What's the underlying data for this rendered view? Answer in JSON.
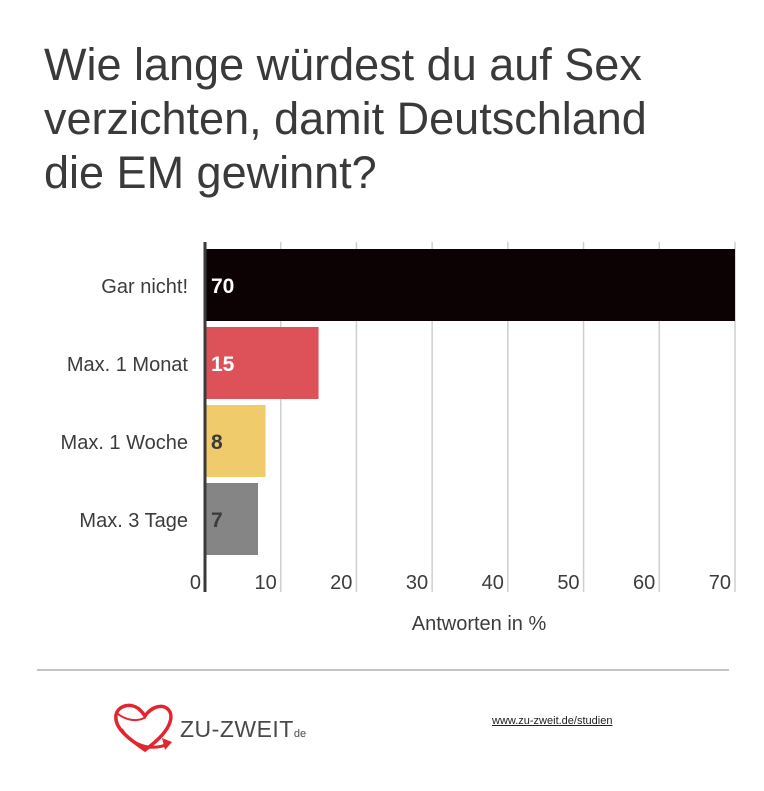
{
  "title_lines": [
    "Wie lange würdest du auf Sex",
    "verzichten, damit Deutschland",
    "die EM gewinnt?"
  ],
  "chart_data": {
    "type": "bar",
    "orientation": "horizontal",
    "categories": [
      "Gar nicht!",
      "Max. 1 Monat",
      "Max. 1 Woche",
      "Max. 3 Tage"
    ],
    "values": [
      70,
      15,
      8,
      7
    ],
    "value_labels": [
      "70",
      "15",
      "8",
      "7"
    ],
    "colors": [
      "#0d0203",
      "#dd5259",
      "#efcb6c",
      "#858585"
    ],
    "value_label_colors": [
      "#ffffff",
      "#ffffff",
      "#3c3c3c",
      "#3c3c3c"
    ],
    "xlabel": "Antworten in %",
    "xlim": [
      0,
      70
    ],
    "xticks": [
      "0",
      "10",
      "20",
      "30",
      "40",
      "50",
      "60",
      "70"
    ],
    "grid": true
  },
  "footer": {
    "brand_name": "ZU-ZWEIT",
    "brand_suffix": "de",
    "link_text": "www.zu-zweit.de/studien",
    "brand_color": "#e5252e"
  }
}
